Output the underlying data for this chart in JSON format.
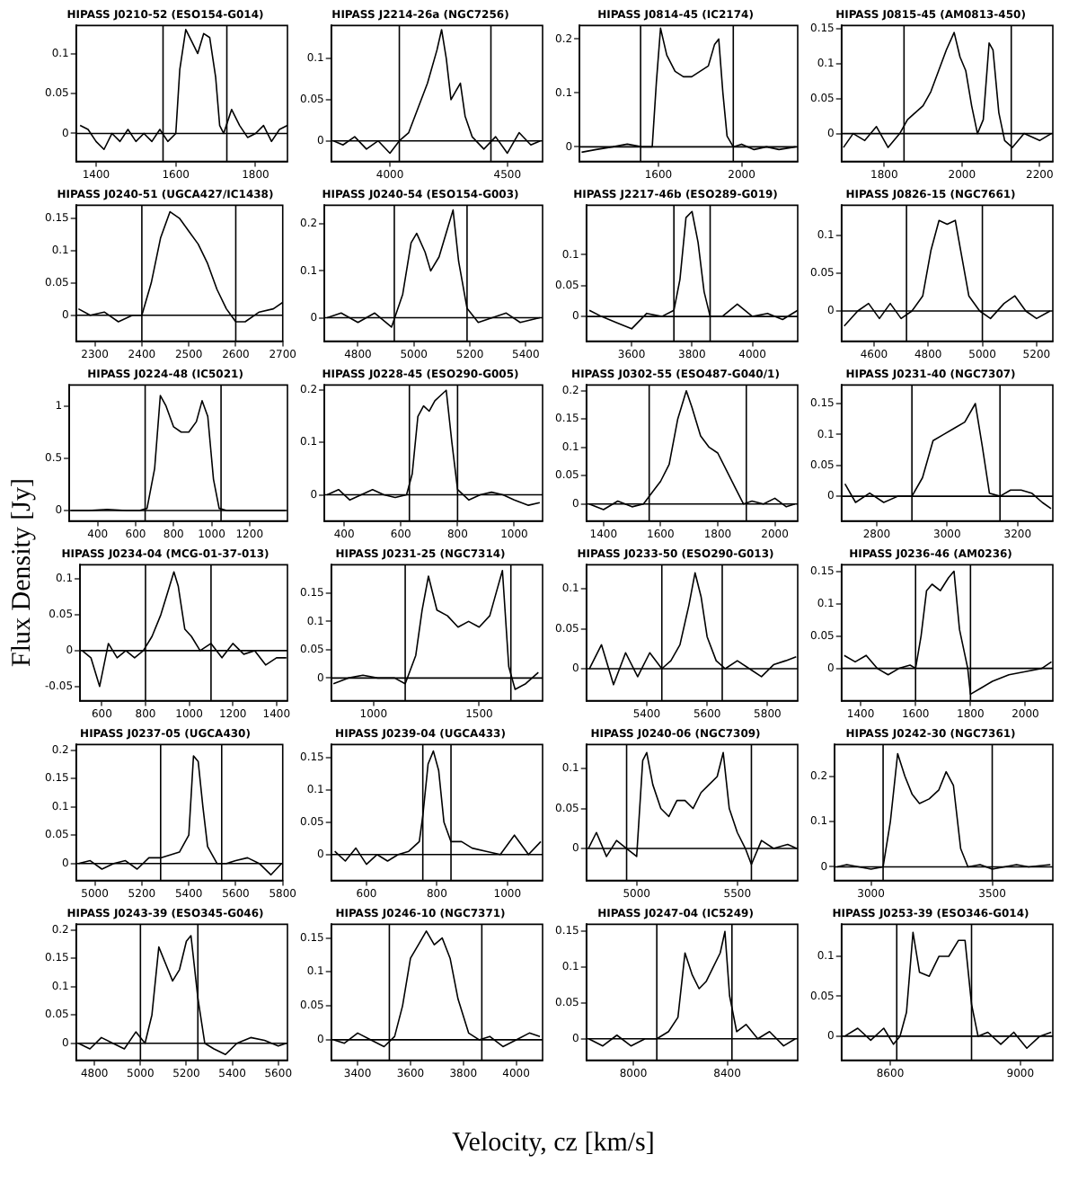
{
  "chart_data": [
    {
      "type": "line",
      "title": "HIPASS J0210-52 (ESO154-G014)",
      "x": [
        1360,
        1380,
        1400,
        1420,
        1440,
        1460,
        1480,
        1500,
        1520,
        1540,
        1560,
        1580,
        1600,
        1610,
        1625,
        1640,
        1655,
        1670,
        1685,
        1700,
        1710,
        1720,
        1740,
        1760,
        1780,
        1800,
        1820,
        1840,
        1860,
        1880
      ],
      "series": [
        {
          "color": "#000000",
          "values": [
            0.01,
            0.005,
            -0.01,
            -0.02,
            0.0,
            -0.01,
            0.005,
            -0.01,
            0.0,
            -0.01,
            0.005,
            -0.01,
            0.0,
            0.08,
            0.13,
            0.115,
            0.1,
            0.125,
            0.12,
            0.07,
            0.01,
            0.0,
            0.03,
            0.01,
            -0.005,
            0.0,
            0.01,
            -0.01,
            0.005,
            0.01
          ]
        }
      ],
      "xlim": [
        1350,
        1880
      ],
      "xticks": [
        1400,
        1600,
        1800
      ],
      "ylim": [
        -0.035,
        0.135
      ],
      "yticks": [
        0,
        0.05,
        0.1
      ],
      "ref_lines": [
        {
          "axis": "x",
          "value": 1568
        },
        {
          "axis": "x",
          "value": 1728
        },
        {
          "axis": "y",
          "value": 0
        }
      ]
    },
    {
      "type": "line",
      "title": "HIPASS J2214-26a (NGC7256)",
      "x": [
        3760,
        3800,
        3850,
        3900,
        3950,
        4000,
        4040,
        4080,
        4120,
        4160,
        4200,
        4220,
        4240,
        4260,
        4280,
        4300,
        4320,
        4350,
        4400,
        4450,
        4500,
        4550,
        4600,
        4640
      ],
      "series": [
        {
          "color": "#000000",
          "values": [
            0.0,
            -0.005,
            0.005,
            -0.01,
            0.0,
            -0.015,
            0.0,
            0.01,
            0.04,
            0.07,
            0.11,
            0.135,
            0.1,
            0.05,
            0.06,
            0.07,
            0.03,
            0.005,
            -0.01,
            0.005,
            -0.015,
            0.01,
            -0.005,
            0.0
          ]
        }
      ],
      "xlim": [
        3750,
        4650
      ],
      "xticks": [
        4000,
        4500
      ],
      "ylim": [
        -0.025,
        0.14
      ],
      "yticks": [
        0,
        0.05,
        0.1
      ],
      "ref_lines": [
        {
          "axis": "x",
          "value": 4040
        },
        {
          "axis": "x",
          "value": 4430
        },
        {
          "axis": "y",
          "value": 0
        }
      ]
    },
    {
      "type": "line",
      "title": "HIPASS J0814-45 (IC2174)",
      "x": [
        1230,
        1300,
        1380,
        1450,
        1520,
        1570,
        1590,
        1610,
        1640,
        1680,
        1720,
        1760,
        1800,
        1840,
        1870,
        1890,
        1910,
        1930,
        1960,
        2000,
        2060,
        2120,
        2180,
        2260
      ],
      "series": [
        {
          "color": "#000000",
          "values": [
            -0.01,
            -0.005,
            0.0,
            0.005,
            0.0,
            0.0,
            0.12,
            0.22,
            0.17,
            0.14,
            0.13,
            0.13,
            0.14,
            0.15,
            0.19,
            0.2,
            0.1,
            0.02,
            0.0,
            0.005,
            -0.005,
            0.0,
            -0.005,
            0.0
          ]
        }
      ],
      "xlim": [
        1220,
        2270
      ],
      "xticks": [
        1600,
        2000
      ],
      "ylim": [
        -0.027,
        0.225
      ],
      "yticks": [
        0,
        0.1,
        0.2
      ],
      "ref_lines": [
        {
          "axis": "x",
          "value": 1514
        },
        {
          "axis": "x",
          "value": 1960
        },
        {
          "axis": "y",
          "value": 0
        }
      ]
    },
    {
      "type": "line",
      "title": "HIPASS J0815-45 (AM0813-450)",
      "x": [
        1695,
        1720,
        1750,
        1780,
        1810,
        1840,
        1860,
        1880,
        1900,
        1920,
        1940,
        1960,
        1980,
        1995,
        2010,
        2025,
        2040,
        2055,
        2070,
        2080,
        2095,
        2110,
        2130,
        2160,
        2200,
        2230
      ],
      "series": [
        {
          "color": "#000000",
          "values": [
            -0.02,
            0.0,
            -0.01,
            0.01,
            -0.02,
            0.0,
            0.02,
            0.03,
            0.04,
            0.06,
            0.09,
            0.12,
            0.145,
            0.11,
            0.09,
            0.04,
            0.0,
            0.02,
            0.13,
            0.12,
            0.03,
            -0.01,
            -0.02,
            0.0,
            -0.01,
            0.0
          ]
        }
      ],
      "xlim": [
        1690,
        2234
      ],
      "xticks": [
        1800,
        2000,
        2200
      ],
      "ylim": [
        -0.04,
        0.155
      ],
      "yticks": [
        0,
        0.05,
        0.1,
        0.15
      ],
      "ref_lines": [
        {
          "axis": "x",
          "value": 1851
        },
        {
          "axis": "x",
          "value": 2127
        },
        {
          "axis": "y",
          "value": 0
        }
      ]
    },
    {
      "type": "line",
      "title": "HIPASS J0240-51 (UGCA427/IC1438)",
      "x": [
        2265,
        2290,
        2320,
        2350,
        2380,
        2400,
        2420,
        2440,
        2460,
        2480,
        2500,
        2520,
        2540,
        2560,
        2580,
        2600,
        2620,
        2650,
        2680,
        2700
      ],
      "series": [
        {
          "color": "#000000",
          "values": [
            0.01,
            0.0,
            0.005,
            -0.01,
            0.0,
            0.0,
            0.05,
            0.12,
            0.16,
            0.15,
            0.13,
            0.11,
            0.08,
            0.04,
            0.01,
            -0.01,
            -0.01,
            0.005,
            0.01,
            0.02
          ]
        }
      ],
      "xlim": [
        2260,
        2700
      ],
      "xticks": [
        2300,
        2400,
        2500,
        2600,
        2700
      ],
      "ylim": [
        -0.04,
        0.17
      ],
      "yticks": [
        0,
        0.05,
        0.1,
        0.15
      ],
      "ref_lines": [
        {
          "axis": "x",
          "value": 2400
        },
        {
          "axis": "x",
          "value": 2600
        },
        {
          "axis": "y",
          "value": 0
        }
      ]
    },
    {
      "type": "line",
      "title": "HIPASS J0240-54 (ESO154-G003)",
      "x": [
        4690,
        4740,
        4800,
        4860,
        4920,
        4960,
        4990,
        5010,
        5040,
        5060,
        5090,
        5120,
        5140,
        5160,
        5190,
        5230,
        5280,
        5330,
        5380,
        5450
      ],
      "series": [
        {
          "color": "#000000",
          "values": [
            0.0,
            0.01,
            -0.01,
            0.01,
            -0.02,
            0.05,
            0.16,
            0.18,
            0.14,
            0.1,
            0.13,
            0.19,
            0.23,
            0.12,
            0.02,
            -0.01,
            0.0,
            0.01,
            -0.01,
            0.0
          ]
        }
      ],
      "xlim": [
        4680,
        5460
      ],
      "xticks": [
        4800,
        5000,
        5200,
        5400
      ],
      "ylim": [
        -0.05,
        0.24
      ],
      "yticks": [
        0,
        0.1,
        0.2
      ],
      "ref_lines": [
        {
          "axis": "x",
          "value": 4930
        },
        {
          "axis": "x",
          "value": 5190
        },
        {
          "axis": "y",
          "value": 0
        }
      ]
    },
    {
      "type": "line",
      "title": "HIPASS J2217-46b (ESO289-G019)",
      "x": [
        3460,
        3500,
        3550,
        3600,
        3650,
        3700,
        3740,
        3760,
        3780,
        3800,
        3820,
        3840,
        3860,
        3900,
        3950,
        4000,
        4050,
        4100,
        4150
      ],
      "series": [
        {
          "color": "#000000",
          "values": [
            0.01,
            0.0,
            -0.01,
            -0.02,
            0.005,
            0.0,
            0.01,
            0.06,
            0.16,
            0.17,
            0.12,
            0.04,
            0.0,
            0.0,
            0.02,
            0.0,
            0.005,
            -0.005,
            0.01
          ]
        }
      ],
      "xlim": [
        3450,
        4150
      ],
      "xticks": [
        3600,
        3800,
        4000
      ],
      "ylim": [
        -0.04,
        0.18
      ],
      "yticks": [
        0,
        0.05,
        0.1
      ],
      "ref_lines": [
        {
          "axis": "x",
          "value": 3740
        },
        {
          "axis": "x",
          "value": 3860
        },
        {
          "axis": "y",
          "value": 0
        }
      ]
    },
    {
      "type": "line",
      "title": "HIPASS J0826-15 (NGC7661)",
      "x": [
        4490,
        4540,
        4580,
        4620,
        4660,
        4700,
        4740,
        4780,
        4810,
        4840,
        4870,
        4900,
        4920,
        4950,
        4990,
        5030,
        5080,
        5120,
        5160,
        5200,
        5250
      ],
      "series": [
        {
          "color": "#000000",
          "values": [
            -0.02,
            0.0,
            0.01,
            -0.01,
            0.01,
            -0.01,
            0.0,
            0.02,
            0.08,
            0.12,
            0.115,
            0.12,
            0.08,
            0.02,
            0.0,
            -0.01,
            0.01,
            0.02,
            0.0,
            -0.01,
            0.0
          ]
        }
      ],
      "xlim": [
        4480,
        5260
      ],
      "xticks": [
        4600,
        4800,
        5000,
        5200
      ],
      "ylim": [
        -0.04,
        0.14
      ],
      "yticks": [
        0,
        0.05,
        0.1
      ],
      "ref_lines": [
        {
          "axis": "x",
          "value": 4720
        },
        {
          "axis": "x",
          "value": 5000
        },
        {
          "axis": "y",
          "value": 0
        }
      ]
    },
    {
      "type": "line",
      "title": "HIPASS J0224-48 (IC5021)",
      "x": [
        260,
        350,
        450,
        550,
        620,
        660,
        700,
        730,
        760,
        800,
        840,
        880,
        920,
        950,
        980,
        1010,
        1040,
        1080,
        1150,
        1250,
        1390
      ],
      "series": [
        {
          "color": "#000000",
          "values": [
            0.0,
            0.0,
            0.01,
            0.0,
            0.0,
            0.02,
            0.4,
            1.1,
            1.0,
            0.8,
            0.75,
            0.75,
            0.85,
            1.05,
            0.9,
            0.3,
            0.02,
            0.0,
            0.0,
            0.0,
            0.0
          ]
        }
      ],
      "xlim": [
        250,
        1400
      ],
      "xticks": [
        400,
        600,
        800,
        1000,
        1200
      ],
      "ylim": [
        -0.1,
        1.2
      ],
      "yticks": [
        0,
        0.5,
        1
      ],
      "ref_lines": [
        {
          "axis": "x",
          "value": 650
        },
        {
          "axis": "x",
          "value": 1050
        },
        {
          "axis": "y",
          "value": 0
        }
      ]
    },
    {
      "type": "line",
      "title": "HIPASS J0228-45 (ESO290-G005)",
      "x": [
        340,
        380,
        420,
        460,
        500,
        540,
        580,
        620,
        640,
        660,
        680,
        700,
        720,
        740,
        760,
        780,
        800,
        840,
        880,
        920,
        960,
        1000,
        1050,
        1090
      ],
      "series": [
        {
          "color": "#000000",
          "values": [
            0.0,
            0.01,
            -0.01,
            0.0,
            0.01,
            0.0,
            -0.005,
            0.0,
            0.04,
            0.15,
            0.17,
            0.16,
            0.18,
            0.19,
            0.2,
            0.1,
            0.01,
            -0.01,
            0.0,
            0.005,
            0.0,
            -0.01,
            -0.02,
            -0.015
          ]
        }
      ],
      "xlim": [
        330,
        1100
      ],
      "xticks": [
        400,
        600,
        800,
        1000
      ],
      "ylim": [
        -0.05,
        0.21
      ],
      "yticks": [
        0,
        0.1,
        0.2
      ],
      "ref_lines": [
        {
          "axis": "x",
          "value": 630
        },
        {
          "axis": "x",
          "value": 800
        },
        {
          "axis": "y",
          "value": 0
        }
      ]
    },
    {
      "type": "line",
      "title": "HIPASS J0302-55 (ESO487-G040/1)",
      "x": [
        1350,
        1400,
        1450,
        1500,
        1540,
        1570,
        1600,
        1630,
        1660,
        1690,
        1710,
        1740,
        1770,
        1800,
        1830,
        1860,
        1890,
        1920,
        1960,
        2000,
        2040,
        2070
      ],
      "series": [
        {
          "color": "#000000",
          "values": [
            0.0,
            -0.01,
            0.005,
            -0.005,
            0.0,
            0.02,
            0.04,
            0.07,
            0.15,
            0.2,
            0.17,
            0.12,
            0.1,
            0.09,
            0.06,
            0.03,
            0.0,
            0.005,
            0.0,
            0.01,
            -0.005,
            0.0
          ]
        }
      ],
      "xlim": [
        1340,
        2080
      ],
      "xticks": [
        1400,
        1600,
        1800,
        2000
      ],
      "ylim": [
        -0.03,
        0.21
      ],
      "yticks": [
        0,
        0.05,
        0.1,
        0.15,
        0.2
      ],
      "ref_lines": [
        {
          "axis": "x",
          "value": 1560
        },
        {
          "axis": "x",
          "value": 1900
        },
        {
          "axis": "y",
          "value": 0
        }
      ]
    },
    {
      "type": "line",
      "title": "HIPASS J0231-40 (NGC7307)",
      "x": [
        2710,
        2740,
        2780,
        2820,
        2860,
        2900,
        2930,
        2960,
        2990,
        3020,
        3050,
        3080,
        3100,
        3120,
        3150,
        3180,
        3210,
        3240,
        3270,
        3295
      ],
      "series": [
        {
          "color": "#000000",
          "values": [
            0.02,
            -0.01,
            0.005,
            -0.01,
            0.0,
            0.0,
            0.03,
            0.09,
            0.1,
            0.11,
            0.12,
            0.15,
            0.08,
            0.005,
            0.0,
            0.01,
            0.01,
            0.005,
            -0.01,
            -0.02
          ]
        }
      ],
      "xlim": [
        2700,
        3300
      ],
      "xticks": [
        2800,
        3000,
        3200
      ],
      "ylim": [
        -0.04,
        0.18
      ],
      "yticks": [
        0,
        0.05,
        0.1,
        0.15
      ],
      "ref_lines": [
        {
          "axis": "x",
          "value": 2900
        },
        {
          "axis": "x",
          "value": 3150
        },
        {
          "axis": "y",
          "value": 0
        }
      ]
    },
    {
      "type": "line",
      "title": "HIPASS J0234-04 (MCG-01-37-013)",
      "ylabel": "Flux Density  [Jy]",
      "x": [
        510,
        550,
        590,
        630,
        670,
        710,
        750,
        790,
        830,
        870,
        900,
        930,
        950,
        980,
        1010,
        1050,
        1100,
        1150,
        1200,
        1250,
        1300,
        1350,
        1400,
        1445
      ],
      "series": [
        {
          "color": "#000000",
          "values": [
            0.0,
            -0.01,
            -0.05,
            0.01,
            -0.01,
            0.0,
            -0.01,
            0.0,
            0.02,
            0.05,
            0.08,
            0.11,
            0.09,
            0.03,
            0.02,
            0.0,
            0.01,
            -0.01,
            0.01,
            -0.005,
            0.0,
            -0.02,
            -0.01,
            -0.01
          ]
        }
      ],
      "xlim": [
        500,
        1450
      ],
      "xticks": [
        600,
        800,
        1000,
        1200,
        1400
      ],
      "ylim": [
        -0.07,
        0.12
      ],
      "yticks": [
        -0.05,
        0,
        0.05,
        0.1
      ],
      "ref_lines": [
        {
          "axis": "x",
          "value": 800
        },
        {
          "axis": "x",
          "value": 1100
        },
        {
          "axis": "y",
          "value": 0
        }
      ]
    },
    {
      "type": "line",
      "title": "HIPASS J0231-25 (NGC7314)",
      "x": [
        810,
        880,
        950,
        1020,
        1100,
        1150,
        1200,
        1230,
        1260,
        1300,
        1350,
        1400,
        1450,
        1500,
        1550,
        1580,
        1610,
        1640,
        1670,
        1720,
        1780
      ],
      "series": [
        {
          "color": "#000000",
          "values": [
            -0.01,
            0.0,
            0.005,
            0.0,
            0.0,
            -0.01,
            0.04,
            0.12,
            0.18,
            0.12,
            0.11,
            0.09,
            0.1,
            0.09,
            0.11,
            0.15,
            0.19,
            0.02,
            -0.02,
            -0.01,
            0.01
          ]
        }
      ],
      "xlim": [
        800,
        1800
      ],
      "xticks": [
        1000,
        1500
      ],
      "ylim": [
        -0.04,
        0.2
      ],
      "yticks": [
        0,
        0.05,
        0.1,
        0.15
      ],
      "ref_lines": [
        {
          "axis": "x",
          "value": 1150
        },
        {
          "axis": "x",
          "value": 1650
        },
        {
          "axis": "y",
          "value": 0
        }
      ]
    },
    {
      "type": "line",
      "title": "HIPASS J0233-50 (ESO290-G013)",
      "x": [
        5210,
        5250,
        5290,
        5330,
        5370,
        5410,
        5450,
        5480,
        5510,
        5540,
        5560,
        5580,
        5600,
        5630,
        5660,
        5700,
        5740,
        5780,
        5820,
        5860,
        5895
      ],
      "series": [
        {
          "color": "#000000",
          "values": [
            0.0,
            0.03,
            -0.02,
            0.02,
            -0.01,
            0.02,
            0.0,
            0.01,
            0.03,
            0.08,
            0.12,
            0.09,
            0.04,
            0.01,
            0.0,
            0.01,
            0.0,
            -0.01,
            0.005,
            0.01,
            0.015
          ]
        }
      ],
      "xlim": [
        5200,
        5900
      ],
      "xticks": [
        5400,
        5600,
        5800
      ],
      "ylim": [
        -0.04,
        0.13
      ],
      "yticks": [
        0,
        0.05,
        0.1
      ],
      "ref_lines": [
        {
          "axis": "x",
          "value": 5450
        },
        {
          "axis": "x",
          "value": 5650
        },
        {
          "axis": "y",
          "value": 0
        }
      ]
    },
    {
      "type": "line",
      "title": "HIPASS J0236-46 (AM0236)",
      "x": [
        1340,
        1380,
        1420,
        1460,
        1500,
        1540,
        1580,
        1600,
        1620,
        1640,
        1660,
        1690,
        1720,
        1740,
        1760,
        1790,
        1800,
        1840,
        1880,
        1940,
        2000,
        2060,
        2095
      ],
      "series": [
        {
          "color": "#000000",
          "values": [
            0.02,
            0.01,
            0.02,
            0.0,
            -0.01,
            0.0,
            0.005,
            0.0,
            0.05,
            0.12,
            0.13,
            0.12,
            0.14,
            0.15,
            0.06,
            0.0,
            -0.04,
            -0.03,
            -0.02,
            -0.01,
            -0.005,
            0.0,
            0.01
          ]
        }
      ],
      "xlim": [
        1330,
        2100
      ],
      "xticks": [
        1400,
        1600,
        1800,
        2000
      ],
      "ylim": [
        -0.05,
        0.16
      ],
      "yticks": [
        0,
        0.05,
        0.1,
        0.15
      ],
      "ref_lines": [
        {
          "axis": "x",
          "value": 1600
        },
        {
          "axis": "x",
          "value": 1800
        },
        {
          "axis": "y",
          "value": 0
        }
      ]
    },
    {
      "type": "line",
      "title": "HIPASS J0237-05 (UGCA430)",
      "x": [
        4930,
        4980,
        5030,
        5080,
        5130,
        5180,
        5230,
        5280,
        5320,
        5360,
        5400,
        5420,
        5440,
        5460,
        5480,
        5520,
        5560,
        5600,
        5650,
        5700,
        5750,
        5795
      ],
      "series": [
        {
          "color": "#000000",
          "values": [
            0.0,
            0.005,
            -0.01,
            0.0,
            0.005,
            -0.01,
            0.01,
            0.01,
            0.015,
            0.02,
            0.05,
            0.19,
            0.18,
            0.1,
            0.03,
            0.0,
            0.0,
            0.005,
            0.01,
            0.0,
            -0.02,
            0.0
          ]
        }
      ],
      "xlim": [
        4920,
        5800
      ],
      "xticks": [
        5000,
        5200,
        5400,
        5600,
        5800
      ],
      "ylim": [
        -0.03,
        0.21
      ],
      "yticks": [
        0,
        0.05,
        0.1,
        0.15,
        0.2
      ],
      "ref_lines": [
        {
          "axis": "x",
          "value": 5280
        },
        {
          "axis": "x",
          "value": 5540
        },
        {
          "axis": "y",
          "value": 0
        }
      ]
    },
    {
      "type": "line",
      "title": "HIPASS J0239-04 (UGCA433)",
      "x": [
        510,
        540,
        570,
        600,
        630,
        660,
        690,
        720,
        750,
        760,
        775,
        790,
        805,
        820,
        840,
        870,
        900,
        940,
        980,
        1020,
        1060,
        1095
      ],
      "series": [
        {
          "color": "#000000",
          "values": [
            0.005,
            -0.01,
            0.01,
            -0.015,
            0.0,
            -0.01,
            0.0,
            0.005,
            0.02,
            0.06,
            0.14,
            0.16,
            0.13,
            0.05,
            0.02,
            0.02,
            0.01,
            0.005,
            0.0,
            0.03,
            0.0,
            0.02
          ]
        }
      ],
      "xlim": [
        500,
        1100
      ],
      "xticks": [
        600,
        800,
        1000
      ],
      "ylim": [
        -0.04,
        0.17
      ],
      "yticks": [
        0,
        0.05,
        0.1,
        0.15
      ],
      "ref_lines": [
        {
          "axis": "x",
          "value": 760
        },
        {
          "axis": "x",
          "value": 840
        },
        {
          "axis": "y",
          "value": 0
        }
      ]
    },
    {
      "type": "line",
      "title": "HIPASS J0240-06 (NGC7309)",
      "x": [
        4760,
        4800,
        4850,
        4900,
        4950,
        5000,
        5030,
        5050,
        5080,
        5120,
        5160,
        5200,
        5240,
        5280,
        5320,
        5360,
        5400,
        5430,
        5460,
        5500,
        5540,
        5570,
        5620,
        5680,
        5750,
        5795
      ],
      "series": [
        {
          "color": "#000000",
          "values": [
            0.0,
            0.02,
            -0.01,
            0.01,
            0.0,
            -0.01,
            0.11,
            0.12,
            0.08,
            0.05,
            0.04,
            0.06,
            0.06,
            0.05,
            0.07,
            0.08,
            0.09,
            0.12,
            0.05,
            0.02,
            0.0,
            -0.02,
            0.01,
            0.0,
            0.005,
            0.0
          ]
        }
      ],
      "xlim": [
        4750,
        5800
      ],
      "xticks": [
        5000,
        5500
      ],
      "ylim": [
        -0.04,
        0.13
      ],
      "yticks": [
        0,
        0.05,
        0.1
      ],
      "ref_lines": [
        {
          "axis": "x",
          "value": 4950
        },
        {
          "axis": "x",
          "value": 5570
        },
        {
          "axis": "y",
          "value": 0
        }
      ]
    },
    {
      "type": "line",
      "title": "HIPASS J0242-30 (NGC7361)",
      "x": [
        2860,
        2900,
        2950,
        3000,
        3050,
        3080,
        3110,
        3140,
        3170,
        3200,
        3240,
        3280,
        3310,
        3340,
        3370,
        3400,
        3450,
        3500,
        3550,
        3600,
        3650,
        3740
      ],
      "series": [
        {
          "color": "#000000",
          "values": [
            0.0,
            0.005,
            0.0,
            -0.005,
            0.0,
            0.1,
            0.25,
            0.2,
            0.16,
            0.14,
            0.15,
            0.17,
            0.21,
            0.18,
            0.04,
            0.0,
            0.005,
            -0.005,
            0.0,
            0.005,
            0.0,
            0.005
          ]
        }
      ],
      "xlim": [
        2850,
        3750
      ],
      "xticks": [
        3000,
        3500
      ],
      "ylim": [
        -0.03,
        0.27
      ],
      "yticks": [
        0,
        0.1,
        0.2
      ],
      "ref_lines": [
        {
          "axis": "x",
          "value": 3050
        },
        {
          "axis": "x",
          "value": 3500
        },
        {
          "axis": "y",
          "value": 0
        }
      ]
    },
    {
      "type": "line",
      "title": "HIPASS J0243-39 (ESO345-G046)",
      "x": [
        4730,
        4780,
        4830,
        4880,
        4930,
        4980,
        5020,
        5050,
        5080,
        5110,
        5140,
        5170,
        5200,
        5220,
        5250,
        5280,
        5320,
        5370,
        5420,
        5480,
        5540,
        5600,
        5635
      ],
      "series": [
        {
          "color": "#000000",
          "values": [
            0.0,
            -0.01,
            0.01,
            0.0,
            -0.01,
            0.02,
            0.0,
            0.05,
            0.17,
            0.14,
            0.11,
            0.13,
            0.18,
            0.19,
            0.08,
            0.0,
            -0.01,
            -0.02,
            0.0,
            0.01,
            0.005,
            -0.005,
            0.0
          ]
        }
      ],
      "xlim": [
        4720,
        5640
      ],
      "xticks": [
        4800,
        5000,
        5200,
        5400,
        5600
      ],
      "ylim": [
        -0.03,
        0.21
      ],
      "yticks": [
        0,
        0.05,
        0.1,
        0.15,
        0.2
      ],
      "ref_lines": [
        {
          "axis": "x",
          "value": 5000
        },
        {
          "axis": "x",
          "value": 5250
        },
        {
          "axis": "y",
          "value": 0
        }
      ]
    },
    {
      "type": "line",
      "title": "HIPASS J0246-10 (NGC7371)",
      "xlabel": "Velocity, cz [km/s]",
      "x": [
        3310,
        3350,
        3400,
        3450,
        3500,
        3540,
        3570,
        3600,
        3630,
        3660,
        3690,
        3720,
        3750,
        3780,
        3820,
        3860,
        3900,
        3950,
        4000,
        4050,
        4090
      ],
      "series": [
        {
          "color": "#000000",
          "values": [
            0.0,
            -0.005,
            0.01,
            0.0,
            -0.01,
            0.005,
            0.05,
            0.12,
            0.14,
            0.16,
            0.14,
            0.15,
            0.12,
            0.06,
            0.01,
            0.0,
            0.005,
            -0.01,
            0.0,
            0.01,
            0.005
          ]
        }
      ],
      "xlim": [
        3300,
        4100
      ],
      "xticks": [
        3400,
        3600,
        3800,
        4000
      ],
      "ylim": [
        -0.03,
        0.17
      ],
      "yticks": [
        0,
        0.05,
        0.1,
        0.15
      ],
      "ref_lines": [
        {
          "axis": "x",
          "value": 3520
        },
        {
          "axis": "x",
          "value": 3870
        },
        {
          "axis": "y",
          "value": 0
        }
      ]
    },
    {
      "type": "line",
      "title": "HIPASS J0247-04 (IC5249)",
      "x": [
        7810,
        7870,
        7930,
        7990,
        8050,
        8100,
        8150,
        8190,
        8220,
        8250,
        8280,
        8310,
        8340,
        8370,
        8390,
        8410,
        8440,
        8480,
        8530,
        8580,
        8640,
        8690
      ],
      "series": [
        {
          "color": "#000000",
          "values": [
            0.0,
            -0.01,
            0.005,
            -0.01,
            0.0,
            0.0,
            0.01,
            0.03,
            0.12,
            0.09,
            0.07,
            0.08,
            0.1,
            0.12,
            0.15,
            0.06,
            0.01,
            0.02,
            0.0,
            0.01,
            -0.01,
            0.0
          ]
        }
      ],
      "xlim": [
        7800,
        8700
      ],
      "xticks": [
        8000,
        8400
      ],
      "ylim": [
        -0.03,
        0.16
      ],
      "yticks": [
        0,
        0.05,
        0.1,
        0.15
      ],
      "ref_lines": [
        {
          "axis": "x",
          "value": 8100
        },
        {
          "axis": "x",
          "value": 8420
        },
        {
          "axis": "y",
          "value": 0
        }
      ]
    },
    {
      "type": "line",
      "title": "HIPASS J0253-39 (ESO346-G014)",
      "x": [
        8460,
        8500,
        8540,
        8580,
        8610,
        8630,
        8650,
        8670,
        8690,
        8720,
        8750,
        8780,
        8810,
        8830,
        8850,
        8870,
        8900,
        8940,
        8980,
        9020,
        9060,
        9095
      ],
      "series": [
        {
          "color": "#000000",
          "values": [
            0.0,
            0.01,
            -0.005,
            0.01,
            -0.01,
            0.0,
            0.03,
            0.13,
            0.08,
            0.075,
            0.1,
            0.1,
            0.12,
            0.12,
            0.04,
            0.0,
            0.005,
            -0.01,
            0.005,
            -0.015,
            0.0,
            0.005
          ]
        }
      ],
      "xlim": [
        8450,
        9100
      ],
      "xticks": [
        8600,
        9000
      ],
      "ylim": [
        -0.03,
        0.14
      ],
      "yticks": [
        0,
        0.05,
        0.1
      ],
      "ref_lines": [
        {
          "axis": "x",
          "value": 8620
        },
        {
          "axis": "x",
          "value": 8850
        },
        {
          "axis": "y",
          "value": 0
        }
      ]
    }
  ]
}
